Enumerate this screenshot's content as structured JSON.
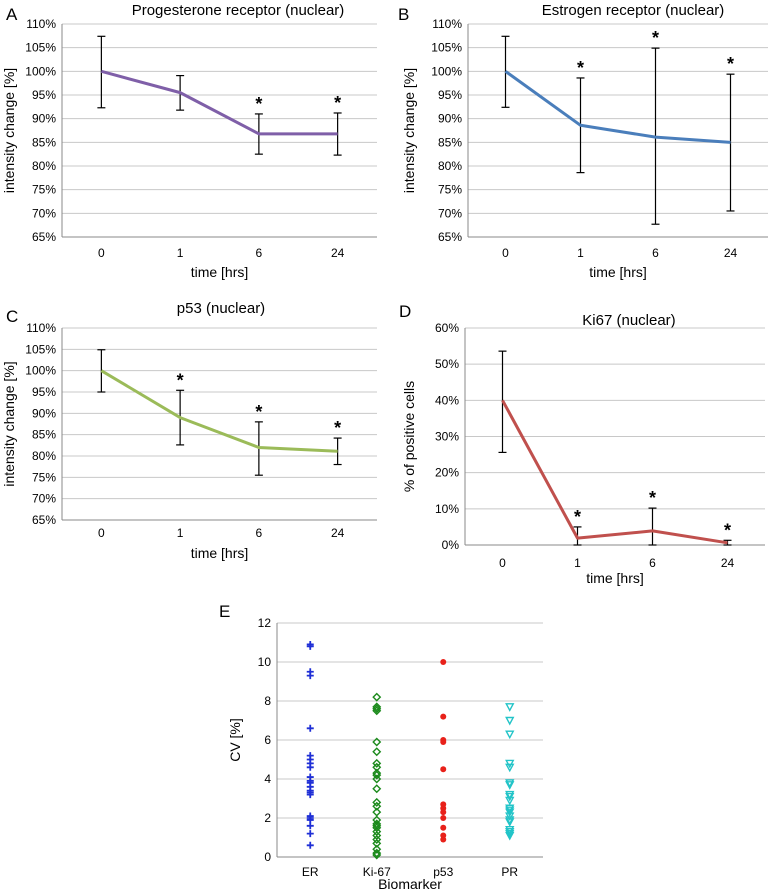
{
  "chart_data": [
    {
      "id": "A",
      "type": "line",
      "panel_label": "A",
      "title": "Progesterone receptor (nuclear)",
      "xlabel": "time [hrs]",
      "ylabel": "intensity change [%]",
      "categories": [
        "0",
        "1",
        "6",
        "24"
      ],
      "yticks": [
        "65%",
        "70%",
        "75%",
        "80%",
        "85%",
        "90%",
        "95%",
        "100%",
        "105%",
        "110%"
      ],
      "ylim": [
        65,
        110
      ],
      "grid": true,
      "color": "#7f5fa8",
      "values": [
        100,
        95.5,
        86.8,
        86.8
      ],
      "err_low": [
        92.3,
        91.8,
        82.5,
        82.3
      ],
      "err_high": [
        107.4,
        99.1,
        91,
        91.2
      ],
      "significance": [
        false,
        false,
        true,
        true
      ],
      "star_label": "*"
    },
    {
      "id": "B",
      "type": "line",
      "panel_label": "B",
      "title": "Estrogen receptor (nuclear)",
      "xlabel": "time [hrs]",
      "ylabel": "intensity change [%]",
      "categories": [
        "0",
        "1",
        "6",
        "24"
      ],
      "yticks": [
        "65%",
        "70%",
        "75%",
        "80%",
        "85%",
        "90%",
        "95%",
        "100%",
        "105%",
        "110%"
      ],
      "ylim": [
        65,
        110
      ],
      "grid": true,
      "color": "#4a7ebb",
      "values": [
        100,
        88.6,
        86.1,
        85
      ],
      "err_low": [
        92.4,
        78.6,
        67.7,
        70.5
      ],
      "err_high": [
        107.4,
        98.6,
        104.9,
        99.4
      ],
      "significance": [
        false,
        true,
        true,
        true
      ],
      "star_label": "*"
    },
    {
      "id": "C",
      "type": "line",
      "panel_label": "C",
      "title": "p53 (nuclear)",
      "xlabel": "time [hrs]",
      "ylabel": "intensity change  [%]",
      "categories": [
        "0",
        "1",
        "6",
        "24"
      ],
      "yticks": [
        "65%",
        "70%",
        "75%",
        "80%",
        "85%",
        "90%",
        "95%",
        "100%",
        "105%",
        "110%"
      ],
      "ylim": [
        65,
        110
      ],
      "grid": true,
      "color": "#9bbb59",
      "values": [
        100,
        89,
        82,
        81.1
      ],
      "err_low": [
        95,
        82.6,
        75.5,
        78
      ],
      "err_high": [
        104.9,
        95.4,
        88,
        84.2
      ],
      "significance": [
        false,
        true,
        true,
        true
      ],
      "star_label": "*"
    },
    {
      "id": "D",
      "type": "line",
      "panel_label": "D",
      "title": "Ki67 (nuclear)",
      "xlabel": "time [hrs]",
      "ylabel": "% of positive cells",
      "categories": [
        "0",
        "1",
        "6",
        "24"
      ],
      "yticks": [
        "0%",
        "10%",
        "20%",
        "30%",
        "40%",
        "50%",
        "60%"
      ],
      "ylim": [
        0,
        60
      ],
      "grid": true,
      "color": "#c0504d",
      "values": [
        40,
        1.9,
        3.9,
        0.6
      ],
      "err_low": [
        25.6,
        0,
        0,
        0
      ],
      "err_high": [
        53.6,
        5,
        10.2,
        1.3
      ],
      "significance": [
        false,
        true,
        true,
        true
      ],
      "star_label": "*"
    },
    {
      "id": "E",
      "type": "scatter",
      "panel_label": "E",
      "title": "",
      "xlabel": "Biomarker",
      "ylabel": "CV [%]",
      "ylim": [
        0,
        12
      ],
      "yticks": [
        "0",
        "2",
        "4",
        "6",
        "8",
        "10",
        "12"
      ],
      "grid": true,
      "categories": [
        "ER",
        "Ki-67",
        "p53",
        "PR"
      ],
      "series": [
        {
          "name": "ER",
          "marker": "plus",
          "color": "#1f2fd6",
          "values": [
            10.9,
            10.8,
            9.5,
            9.3,
            6.6,
            5.2,
            5,
            4.8,
            4.6,
            4.1,
            3.9,
            3.8,
            3.6,
            3.4,
            3.3,
            3.2,
            2.1,
            2,
            1.9,
            1.6,
            1.2,
            0.6
          ]
        },
        {
          "name": "Ki-67",
          "marker": "diamond",
          "color": "#1b8a1b",
          "values": [
            8.2,
            7.7,
            7.6,
            7.5,
            5.9,
            5.4,
            4.8,
            4.6,
            4.3,
            4.2,
            4,
            3.5,
            2.8,
            2.6,
            2.3,
            1.9,
            1.7,
            1.6,
            1.5,
            1.3,
            1.1,
            0.9,
            0.7,
            0.4,
            0.2,
            0.1
          ]
        },
        {
          "name": "p53",
          "marker": "circle",
          "color": "#e8211a",
          "values": [
            10,
            7.2,
            6,
            5.9,
            4.5,
            2.7,
            2.5,
            2.3,
            2,
            1.5,
            1.1,
            0.9
          ]
        },
        {
          "name": "PR",
          "marker": "triangle-down",
          "color": "#22c4c8",
          "values": [
            7.7,
            7,
            6.3,
            4.8,
            4.6,
            3.8,
            3.7,
            3.2,
            3.1,
            2.9,
            2.5,
            2.4,
            2.3,
            2.1,
            1.9,
            1.8,
            1.4,
            1.3,
            1.2,
            1.1
          ]
        }
      ]
    }
  ]
}
